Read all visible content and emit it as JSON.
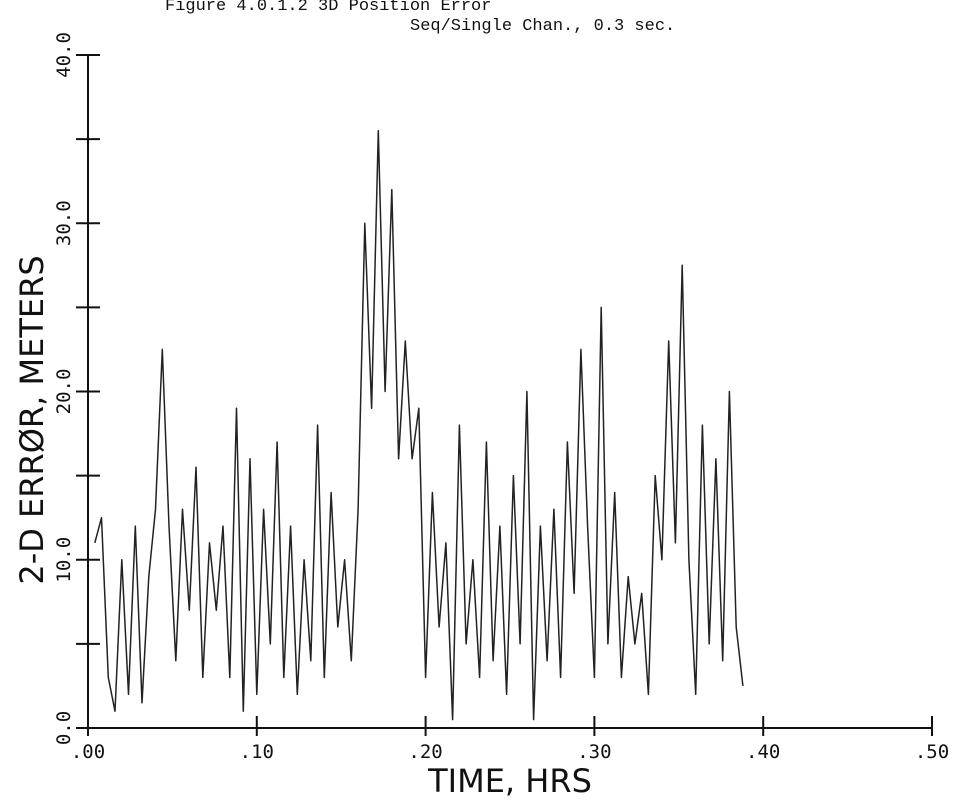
{
  "chart_data": {
    "type": "line",
    "title": "Figure 4.0.1.2  3D Position Error",
    "subtitle": "Seq/Single Chan., 0.3 sec.",
    "x_label": "TIME, HRS",
    "y_label": "2-D ERRØR, METERS",
    "xlim": [
      0,
      0.5
    ],
    "ylim": [
      0,
      40
    ],
    "xticks": [
      {
        "value": 0,
        "label": ".00"
      },
      {
        "value": 0.1,
        "label": ".10"
      },
      {
        "value": 0.2,
        "label": ".20"
      },
      {
        "value": 0.3,
        "label": ".30"
      },
      {
        "value": 0.4,
        "label": ".40"
      },
      {
        "value": 0.5,
        "label": ".50"
      }
    ],
    "yticks": [
      {
        "value": 0,
        "label": "0.0"
      },
      {
        "value": 10,
        "label": "10.0"
      },
      {
        "value": 20,
        "label": "20.0"
      },
      {
        "value": 30,
        "label": "30.0"
      },
      {
        "value": 40,
        "label": "40.0"
      }
    ],
    "yminorticks": [
      5,
      15,
      25,
      35
    ],
    "color": "#222222",
    "x": [
      0.004,
      0.008,
      0.012,
      0.016,
      0.02,
      0.024,
      0.028,
      0.032,
      0.036,
      0.04,
      0.044,
      0.048,
      0.052,
      0.056,
      0.06,
      0.064,
      0.068,
      0.072,
      0.076,
      0.08,
      0.084,
      0.088,
      0.092,
      0.096,
      0.1,
      0.104,
      0.108,
      0.112,
      0.116,
      0.12,
      0.124,
      0.128,
      0.132,
      0.136,
      0.14,
      0.144,
      0.148,
      0.152,
      0.156,
      0.16,
      0.164,
      0.168,
      0.172,
      0.176,
      0.18,
      0.184,
      0.188,
      0.192,
      0.196,
      0.2,
      0.204,
      0.208,
      0.212,
      0.216,
      0.22,
      0.224,
      0.228,
      0.232,
      0.236,
      0.24,
      0.244,
      0.248,
      0.252,
      0.256,
      0.26,
      0.264,
      0.268,
      0.272,
      0.276,
      0.28,
      0.284,
      0.288,
      0.292,
      0.296,
      0.3,
      0.304,
      0.308,
      0.312,
      0.316,
      0.32,
      0.324,
      0.328,
      0.332,
      0.336,
      0.34,
      0.344,
      0.348,
      0.352,
      0.356,
      0.36,
      0.364,
      0.368,
      0.372,
      0.376,
      0.38,
      0.384,
      0.388
    ],
    "values": [
      11,
      12.5,
      3,
      1,
      10,
      2,
      12,
      1.5,
      9,
      13,
      22.5,
      12,
      4,
      13,
      7,
      15.5,
      3,
      11,
      7,
      12,
      3,
      19,
      1,
      16,
      2,
      13,
      5,
      17,
      3,
      12,
      2,
      10,
      4,
      18,
      3,
      14,
      6,
      10,
      4,
      13,
      30,
      19,
      35.5,
      20,
      32,
      16,
      23,
      16,
      19,
      3,
      14,
      6,
      11,
      0.5,
      18,
      5,
      10,
      3,
      17,
      4,
      12,
      2,
      15,
      5,
      20,
      0.5,
      12,
      4,
      13,
      3,
      17,
      8,
      22.5,
      12,
      3,
      25,
      5,
      14,
      3,
      9,
      5,
      8,
      2,
      15,
      10,
      23,
      11,
      27.5,
      10,
      2,
      18,
      5,
      16,
      4,
      20,
      6,
      2.5
    ]
  }
}
